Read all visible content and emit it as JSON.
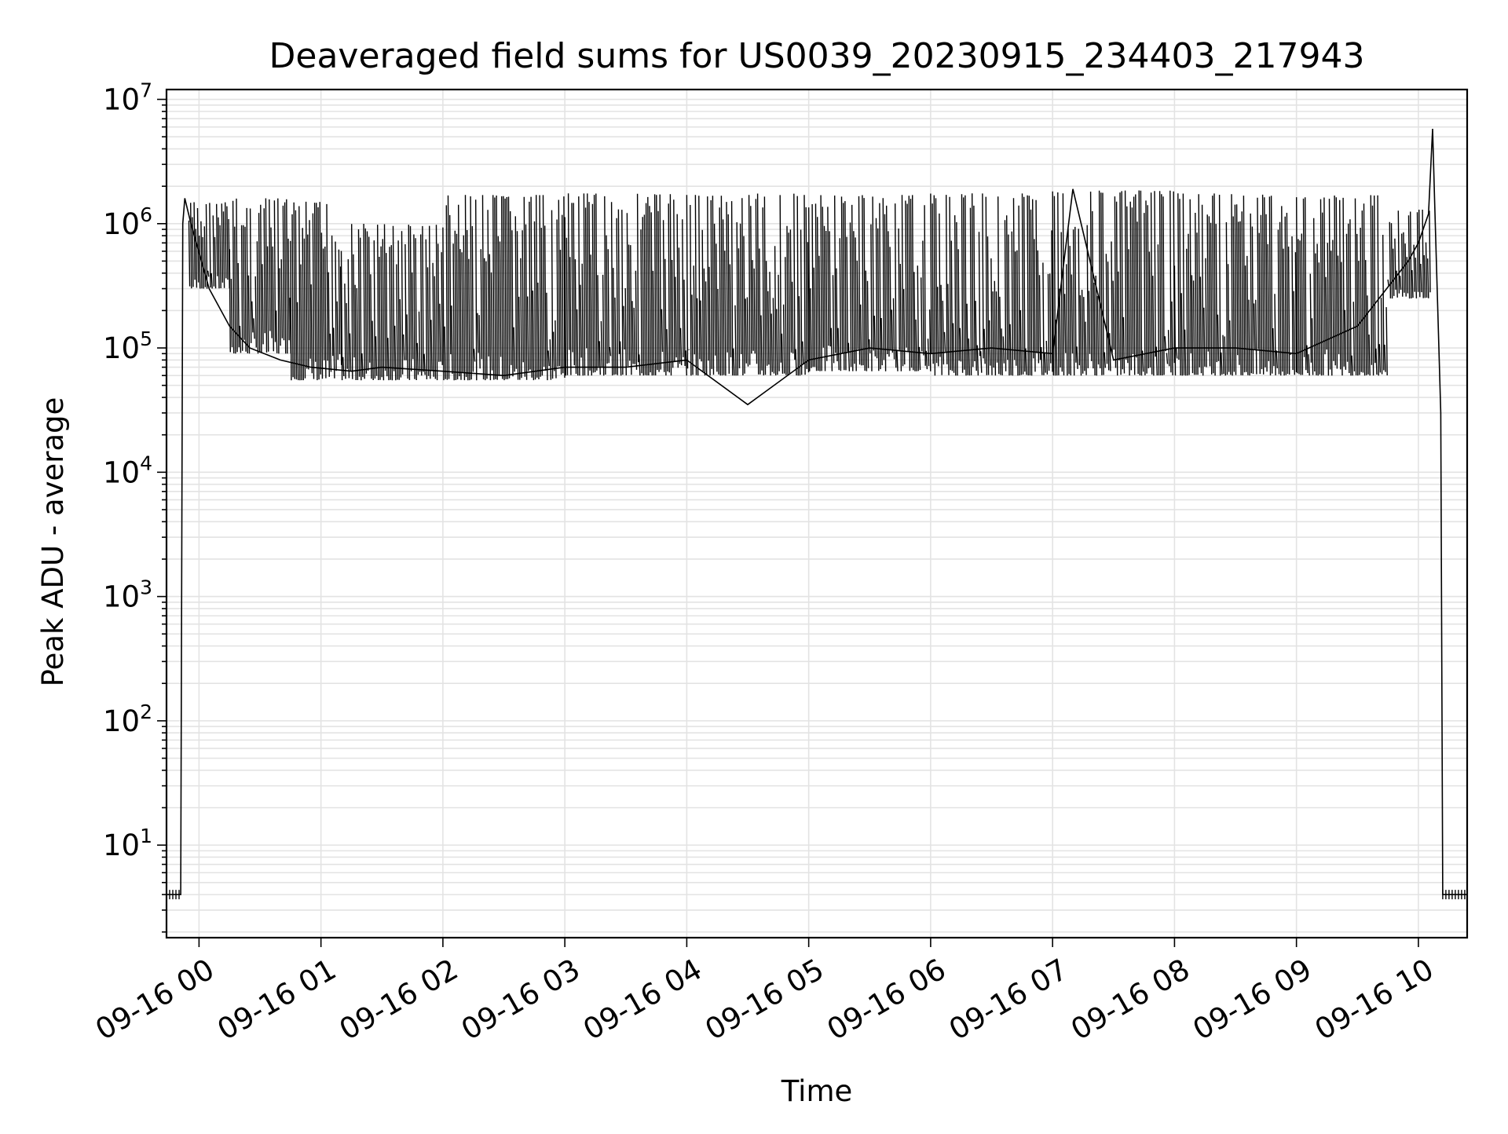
{
  "chart_data": {
    "type": "line",
    "title": "Deaveraged field sums for US0039_20230915_234403_217943",
    "xlabel": "Time",
    "ylabel": "Peak ADU - average",
    "y_scale": "log",
    "ylim": [
      1.8,
      12000000
    ],
    "xlim": [
      "2023-09-15 23:44",
      "2023-09-16 10:24"
    ],
    "grid": "major and minor, light gray",
    "legend": "none",
    "line_color": "#000000",
    "x_ticks": [
      {
        "label": "09-16 00",
        "time": "2023-09-16 00:00"
      },
      {
        "label": "09-16 01",
        "time": "2023-09-16 01:00"
      },
      {
        "label": "09-16 02",
        "time": "2023-09-16 02:00"
      },
      {
        "label": "09-16 03",
        "time": "2023-09-16 03:00"
      },
      {
        "label": "09-16 04",
        "time": "2023-09-16 04:00"
      },
      {
        "label": "09-16 05",
        "time": "2023-09-16 05:00"
      },
      {
        "label": "09-16 06",
        "time": "2023-09-16 06:00"
      },
      {
        "label": "09-16 07",
        "time": "2023-09-16 07:00"
      },
      {
        "label": "09-16 08",
        "time": "2023-09-16 08:00"
      },
      {
        "label": "09-16 09",
        "time": "2023-09-16 09:00"
      },
      {
        "label": "09-16 10",
        "time": "2023-09-16 10:00"
      }
    ],
    "y_ticks": [
      {
        "base": "10",
        "exp": "1",
        "value": 10
      },
      {
        "base": "10",
        "exp": "2",
        "value": 100
      },
      {
        "base": "10",
        "exp": "3",
        "value": 1000
      },
      {
        "base": "10",
        "exp": "4",
        "value": 10000
      },
      {
        "base": "10",
        "exp": "5",
        "value": 100000
      },
      {
        "base": "10",
        "exp": "6",
        "value": 1000000
      },
      {
        "base": "10",
        "exp": "7",
        "value": 10000000
      }
    ],
    "series": [
      {
        "points": [
          [
            "2023-09-15 23:44",
            4
          ],
          [
            "2023-09-15 23:51",
            4
          ],
          [
            "2023-09-15 23:52",
            1000000
          ],
          [
            "2023-09-15 23:53",
            1600000
          ],
          [
            "2023-09-15 23:56",
            1000000
          ],
          [
            "2023-09-16 00:05",
            300000
          ],
          [
            "2023-09-16 00:15",
            150000
          ],
          [
            "2023-09-16 00:25",
            100000
          ],
          [
            "2023-09-16 00:40",
            80000
          ],
          [
            "2023-09-16 00:55",
            70000
          ],
          [
            "2023-09-16 01:15",
            65000
          ],
          [
            "2023-09-16 01:30",
            70000
          ],
          [
            "2023-09-16 02:00",
            65000
          ],
          [
            "2023-09-16 02:30",
            60000
          ],
          [
            "2023-09-16 03:00",
            70000
          ],
          [
            "2023-09-16 03:30",
            70000
          ],
          [
            "2023-09-16 04:00",
            80000
          ],
          [
            "2023-09-16 04:30",
            35000
          ],
          [
            "2023-09-16 05:00",
            80000
          ],
          [
            "2023-09-16 05:30",
            100000
          ],
          [
            "2023-09-16 06:00",
            90000
          ],
          [
            "2023-09-16 06:30",
            100000
          ],
          [
            "2023-09-16 07:00",
            90000
          ],
          [
            "2023-09-16 07:10",
            1900000
          ],
          [
            "2023-09-16 07:30",
            80000
          ],
          [
            "2023-09-16 08:00",
            100000
          ],
          [
            "2023-09-16 08:30",
            100000
          ],
          [
            "2023-09-16 09:00",
            90000
          ],
          [
            "2023-09-16 09:30",
            150000
          ],
          [
            "2023-09-16 09:55",
            500000
          ],
          [
            "2023-09-16 10:00",
            700000
          ],
          [
            "2023-09-16 10:05",
            1200000
          ],
          [
            "2023-09-16 10:07",
            5800000
          ],
          [
            "2023-09-16 10:08",
            1500000
          ],
          [
            "2023-09-16 10:11",
            30000
          ],
          [
            "2023-09-16 10:12",
            4
          ],
          [
            "2023-09-16 10:24",
            4
          ]
        ],
        "envelope": [
          {
            "start": "2023-09-15 23:55",
            "end": "2023-09-16 00:15",
            "low": 300000,
            "high": 1500000
          },
          {
            "start": "2023-09-16 00:15",
            "end": "2023-09-16 00:45",
            "low": 90000,
            "high": 1600000
          },
          {
            "start": "2023-09-16 00:45",
            "end": "2023-09-16 01:10",
            "low": 55000,
            "high": 1500000
          },
          {
            "start": "2023-09-16 01:10",
            "end": "2023-09-16 02:00",
            "low": 55000,
            "high": 1000000
          },
          {
            "start": "2023-09-16 02:00",
            "end": "2023-09-16 03:00",
            "low": 55000,
            "high": 1700000
          },
          {
            "start": "2023-09-16 03:00",
            "end": "2023-09-16 04:00",
            "low": 60000,
            "high": 1750000
          },
          {
            "start": "2023-09-16 04:00",
            "end": "2023-09-16 05:00",
            "low": 60000,
            "high": 1750000
          },
          {
            "start": "2023-09-16 05:00",
            "end": "2023-09-16 06:00",
            "low": 65000,
            "high": 1700000
          },
          {
            "start": "2023-09-16 06:00",
            "end": "2023-09-16 07:00",
            "low": 60000,
            "high": 1750000
          },
          {
            "start": "2023-09-16 07:00",
            "end": "2023-09-16 08:00",
            "low": 60000,
            "high": 1850000
          },
          {
            "start": "2023-09-16 08:00",
            "end": "2023-09-16 09:00",
            "low": 60000,
            "high": 1750000
          },
          {
            "start": "2023-09-16 09:00",
            "end": "2023-09-16 09:45",
            "low": 60000,
            "high": 1700000
          },
          {
            "start": "2023-09-16 09:45",
            "end": "2023-09-16 10:06",
            "low": 250000,
            "high": 1300000
          }
        ]
      }
    ]
  }
}
